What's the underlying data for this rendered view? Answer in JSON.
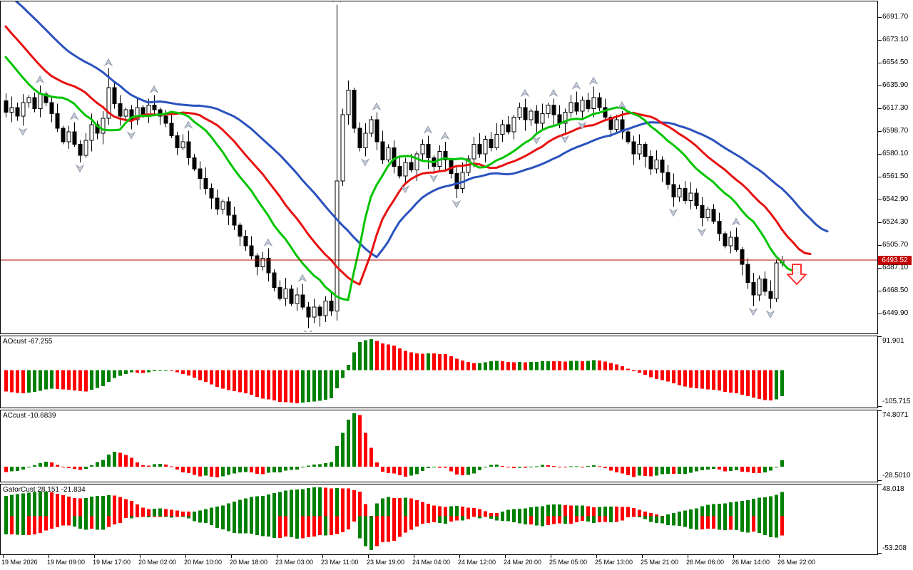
{
  "main": {
    "current_price": "6493.52",
    "current_price_value": 6493.52,
    "signal_marker": "sell-down-arrow"
  },
  "colors": {
    "background": "#FFFFFF",
    "candle_up_fill": "#FFFFFF",
    "candle_down_fill": "#000000",
    "candle_border": "#000000",
    "hist_up": "#008000",
    "hist_down": "#FF0000",
    "price_line": "#B00000",
    "price_badge_bg": "#C40000",
    "price_badge_text": "#FFFFFF",
    "fractal_fill": "#C9CEDB",
    "fractal_stroke": "#939CAE",
    "signal_arrow_stroke": "#FF3030",
    "signal_arrow_fill": "#FFF4F4"
  },
  "chart_data": {
    "type": "candlestick",
    "legend_position": "none",
    "grid": false,
    "visible_price_range": [
      6434,
      6706
    ],
    "price_axis": {
      "labels": [
        "6691.70",
        "6673.10",
        "6654.50",
        "6635.90",
        "6617.30",
        "6598.70",
        "6580.10",
        "6561.50",
        "6542.90",
        "6524.30",
        "6505.70",
        "6487.10",
        "6468.50",
        "6449.90"
      ],
      "step": 18.6
    },
    "time_axis": {
      "labels": [
        "19 Mar 2026",
        "19 Mar 09:00",
        "19 Mar 17:00",
        "20 Mar 02:00",
        "20 Mar 10:00",
        "20 Mar 18:00",
        "23 Mar 03:00",
        "23 Mar 11:00",
        "23 Mar 19:00",
        "24 Mar 04:00",
        "24 Mar 12:00",
        "24 Mar 20:00",
        "25 Mar 05:00",
        "25 Mar 13:00",
        "25 Mar 21:00",
        "26 Mar 06:00",
        "26 Mar 14:00",
        "26 Mar 22:00"
      ]
    },
    "closes": [
      6614,
      6618,
      6611,
      6622,
      6626,
      6617,
      6629,
      6622,
      6613,
      6601,
      6590,
      6598,
      6588,
      6579,
      6591,
      6604,
      6597,
      6609,
      6634,
      6621,
      6611,
      6616,
      6608,
      6618,
      6612,
      6620,
      6616,
      6611,
      6605,
      6595,
      6585,
      6590,
      6577,
      6568,
      6560,
      6552,
      6544,
      6535,
      6541,
      6530,
      6522,
      6513,
      6505,
      6497,
      6488,
      6495,
      6483,
      6471,
      6462,
      6470,
      6458,
      6465,
      6455,
      6447,
      6455,
      6448,
      6460,
      6452,
      6558,
      6612,
      6632,
      6601,
      6585,
      6597,
      6608,
      6590,
      6575,
      6585,
      6570,
      6562,
      6573,
      6567,
      6580,
      6588,
      6577,
      6570,
      6582,
      6575,
      6564,
      6552,
      6565,
      6576,
      6588,
      6580,
      6592,
      6585,
      6596,
      6604,
      6598,
      6610,
      6618,
      6608,
      6615,
      6605,
      6613,
      6620,
      6612,
      6605,
      6614,
      6622,
      6615,
      6624,
      6617,
      6626,
      6618,
      6610,
      6600,
      6608,
      6598,
      6590,
      6580,
      6588,
      6578,
      6568,
      6575,
      6565,
      6555,
      6545,
      6552,
      6542,
      6548,
      6538,
      6528,
      6535,
      6525,
      6515,
      6505,
      6512,
      6502,
      6490,
      6475,
      6465,
      6478,
      6468,
      6462,
      6491,
      6493.52
    ],
    "wick_overrides": {
      "18": {
        "high": 6650
      },
      "58": {
        "high": 6702,
        "low": 6444
      },
      "135": {
        "low": 6459
      },
      "136": {
        "high": 6497,
        "low": 6488
      }
    },
    "pre_trend": {
      "start": 6750,
      "step": -5.5,
      "count": 24
    },
    "alligator": {
      "lines": [
        {
          "name": "jaw",
          "period": 13,
          "shift": 8,
          "color": "#2A52BE"
        },
        {
          "name": "teeth",
          "period": 8,
          "shift": 5,
          "color": "#E81010"
        },
        {
          "name": "lips",
          "period": 5,
          "shift": 3,
          "color": "#00C400"
        }
      ]
    },
    "indicators": [
      {
        "id": "ao",
        "label": "AOcust -67.255",
        "scale_top": "91.901",
        "scale_bottom": "-105.715",
        "type": "histogram"
      },
      {
        "id": "ac",
        "label": "ACcust -10.6839",
        "scale_top": "74.8071",
        "scale_bottom": "-28.5010",
        "type": "histogram"
      },
      {
        "id": "gator",
        "label": "GatorCust 28.151 -21.834",
        "scale_top": "48.018",
        "scale_bottom": "-53.208",
        "type": "double-histogram"
      }
    ]
  }
}
